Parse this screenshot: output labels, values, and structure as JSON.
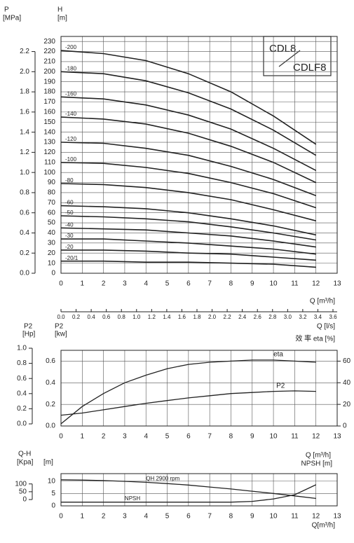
{
  "chart_data": [
    {
      "type": "line",
      "grid": true,
      "color": "#222222",
      "y_label": "H",
      "y_unit": "[m]",
      "y2_label": "P",
      "y2_unit": "[MPa]",
      "x_label": "Q [m³/h]",
      "x2_label": "Q [l/s]",
      "model_top": "CDL8",
      "model_bottom": "CDLF8",
      "xlim": [
        0,
        13
      ],
      "xticks": [
        0,
        1,
        2,
        3,
        4,
        5,
        6,
        7,
        8,
        9,
        10,
        11,
        12,
        13
      ],
      "ylim": [
        0,
        235
      ],
      "yticks": [
        0,
        10,
        20,
        30,
        40,
        50,
        60,
        70,
        80,
        90,
        100,
        110,
        120,
        130,
        140,
        150,
        160,
        170,
        180,
        190,
        200,
        210,
        220,
        230
      ],
      "y2lim": [
        0,
        2.35
      ],
      "y2ticks": [
        {
          "value": 0,
          "label": "0.0"
        },
        0.2,
        0.4,
        0.6,
        0.8,
        {
          "value": 1,
          "label": "1.0"
        },
        1.2,
        1.4,
        1.6,
        1.8,
        {
          "value": 2,
          "label": "2.0"
        },
        2.2
      ],
      "x2lim": [
        0,
        3.6
      ],
      "x2ticks": [
        {
          "value": 0,
          "label": "0.0"
        },
        0.2,
        0.4,
        0.6,
        0.8,
        {
          "value": 1,
          "label": "1.0"
        },
        1.2,
        1.4,
        1.6,
        1.8,
        {
          "value": 2,
          "label": "2.0"
        },
        2.2,
        2.4,
        2.6,
        2.8,
        {
          "value": 3,
          "label": "3.0"
        },
        3.2,
        3.4,
        3.6
      ],
      "x": [
        0,
        2,
        4,
        6,
        8,
        10,
        12
      ],
      "series": [
        {
          "name": "-200",
          "values": [
            221,
            218,
            211,
            198,
            180,
            156,
            128
          ]
        },
        {
          "name": "-180",
          "values": [
            200,
            198,
            191,
            179,
            163,
            142,
            117
          ]
        },
        {
          "name": "-160",
          "values": [
            175,
            173,
            167,
            157,
            143,
            124,
            102
          ]
        },
        {
          "name": "-140",
          "values": [
            155,
            153,
            148,
            139,
            126,
            110,
            90
          ]
        },
        {
          "name": "-120",
          "values": [
            130,
            129,
            124,
            117,
            106,
            93,
            77
          ]
        },
        {
          "name": "-100",
          "values": [
            110,
            109,
            105,
            99,
            90,
            79,
            65
          ]
        },
        {
          "name": "-80",
          "values": [
            89,
            88,
            85,
            80,
            73,
            63,
            52
          ]
        },
        {
          "name": "-60",
          "values": [
            67,
            66,
            64,
            60,
            54,
            47,
            38
          ]
        },
        {
          "name": "-50",
          "values": [
            57,
            56,
            54,
            51,
            46,
            40,
            33
          ]
        },
        {
          "name": "-40",
          "values": [
            45,
            44,
            43,
            40,
            37,
            32,
            26
          ]
        },
        {
          "name": "-30",
          "values": [
            34,
            34,
            32,
            30,
            27,
            24,
            19
          ]
        },
        {
          "name": "-20",
          "values": [
            23,
            23,
            22,
            20,
            19,
            16,
            13
          ]
        },
        {
          "name": "-20/1",
          "values": [
            12,
            12,
            11,
            11,
            10,
            9,
            6
          ]
        }
      ]
    },
    {
      "type": "line",
      "grid": true,
      "color": "#222222",
      "y_label": "P2",
      "y_unit": "[kw]",
      "y3_label": "P2",
      "y3_unit": "[Hp]",
      "y2_label": "效 率 eta  [%]",
      "xlim": [
        0,
        13
      ],
      "xticks": [
        0,
        1,
        2,
        3,
        4,
        5,
        6,
        7,
        8,
        9,
        10,
        11,
        12,
        13
      ],
      "ylim": [
        0,
        0.7
      ],
      "yticks": [
        {
          "value": 0,
          "label": "0.0"
        },
        0.2,
        0.4,
        0.6
      ],
      "y2lim": [
        0,
        70
      ],
      "y2ticks": [
        0,
        20,
        40,
        60
      ],
      "y3lim": [
        0,
        1
      ],
      "y3ticks": [
        {
          "value": 0,
          "label": "0.0"
        },
        0.2,
        0.4,
        0.6,
        0.8,
        {
          "value": 1,
          "label": "1.0"
        }
      ],
      "x": [
        0,
        1,
        2,
        3,
        4,
        5,
        6,
        7,
        8,
        9,
        10,
        11,
        12
      ],
      "series": [
        {
          "name": "eta",
          "axis": "y2",
          "values": [
            2,
            18,
            30,
            40,
            47,
            53,
            57,
            59,
            60,
            61,
            61,
            60,
            59
          ]
        },
        {
          "name": "P2",
          "values": [
            0.1,
            0.12,
            0.15,
            0.18,
            0.21,
            0.235,
            0.26,
            0.28,
            0.3,
            0.31,
            0.32,
            0.325,
            0.32
          ]
        }
      ]
    },
    {
      "type": "line",
      "grid": true,
      "color": "#222222",
      "title": "Q-H",
      "y_unit": "[m]",
      "y3_unit": "[Kpa]",
      "x_label": "Q[m³/h]",
      "right_labels": [
        "Q [m³/h]",
        "NPSH [m]"
      ],
      "xlim": [
        0,
        13
      ],
      "xticks": [
        0,
        1,
        2,
        3,
        4,
        5,
        6,
        7,
        8,
        9,
        10,
        11,
        12,
        13
      ],
      "ylim": [
        0,
        13
      ],
      "yticks": [
        0,
        5,
        10
      ],
      "y3lim": [
        0,
        130
      ],
      "y3ticks": [
        0,
        50,
        100
      ],
      "x": [
        0,
        1,
        2,
        3,
        4,
        5,
        6,
        7,
        8,
        9,
        10,
        11,
        12
      ],
      "series": [
        {
          "name": "QH 2900 rpm",
          "values": [
            10.5,
            10.4,
            10.2,
            9.9,
            9.5,
            9,
            8.4,
            7.6,
            6.8,
            5.9,
            5,
            4,
            3
          ]
        },
        {
          "name": "NPSH",
          "values": [
            1.5,
            1.5,
            1.5,
            1.5,
            1.5,
            1.5,
            1.5,
            1.5,
            1.5,
            1.8,
            2.8,
            4.5,
            8.5
          ]
        }
      ]
    }
  ]
}
